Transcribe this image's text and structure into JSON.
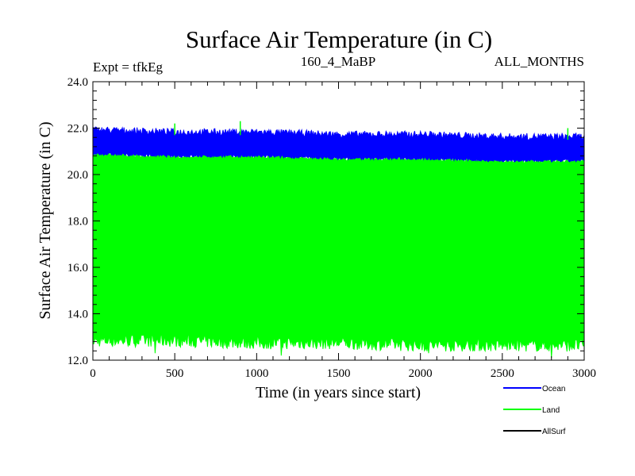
{
  "header": {
    "title": "Surface Air Temperature (in C)",
    "expt": "Expt = tfkEg",
    "run": "160_4_MaBP",
    "months": "ALL_MONTHS"
  },
  "chart_data": {
    "type": "line",
    "title": "Surface Air Temperature (in C)",
    "xlabel": "Time (in years since start)",
    "ylabel": "Surface Air Temperature (in C)",
    "xlim": [
      0,
      3000
    ],
    "ylim": [
      12.0,
      24.0
    ],
    "x_ticks": [
      "0",
      "500",
      "1000",
      "1500",
      "2000",
      "2500",
      "3000"
    ],
    "y_ticks": [
      "12.0",
      "14.0",
      "16.0",
      "18.0",
      "20.0",
      "22.0",
      "24.0"
    ],
    "grid": false,
    "legend_position": "bottom-right",
    "series": [
      {
        "name": "Ocean",
        "color": "#0000ff",
        "envelope": {
          "x": [
            0,
            500,
            1000,
            1500,
            2000,
            2500,
            3000
          ],
          "upper": [
            21.9,
            21.8,
            21.8,
            21.7,
            21.7,
            21.6,
            21.6
          ],
          "lower": [
            20.9,
            20.8,
            20.8,
            20.7,
            20.7,
            20.6,
            20.6
          ]
        },
        "peaks": [
          {
            "x": 500,
            "y": 22.2
          },
          {
            "x": 900,
            "y": 22.3
          },
          {
            "x": 2900,
            "y": 22.0
          }
        ]
      },
      {
        "name": "Land",
        "color": "#00ff00",
        "envelope": {
          "x": [
            0,
            500,
            1000,
            1500,
            2000,
            2500,
            3000
          ],
          "upper": [
            20.9,
            20.8,
            20.8,
            20.7,
            20.7,
            20.6,
            20.6
          ],
          "lower": [
            12.9,
            12.9,
            12.8,
            12.8,
            12.7,
            12.7,
            12.7
          ]
        },
        "troughs": [
          {
            "x": 380,
            "y": 12.3
          },
          {
            "x": 1150,
            "y": 12.2
          },
          {
            "x": 2050,
            "y": 12.3
          },
          {
            "x": 2800,
            "y": 12.1
          }
        ]
      },
      {
        "name": "AllSurf",
        "color": "#000000"
      }
    ]
  }
}
